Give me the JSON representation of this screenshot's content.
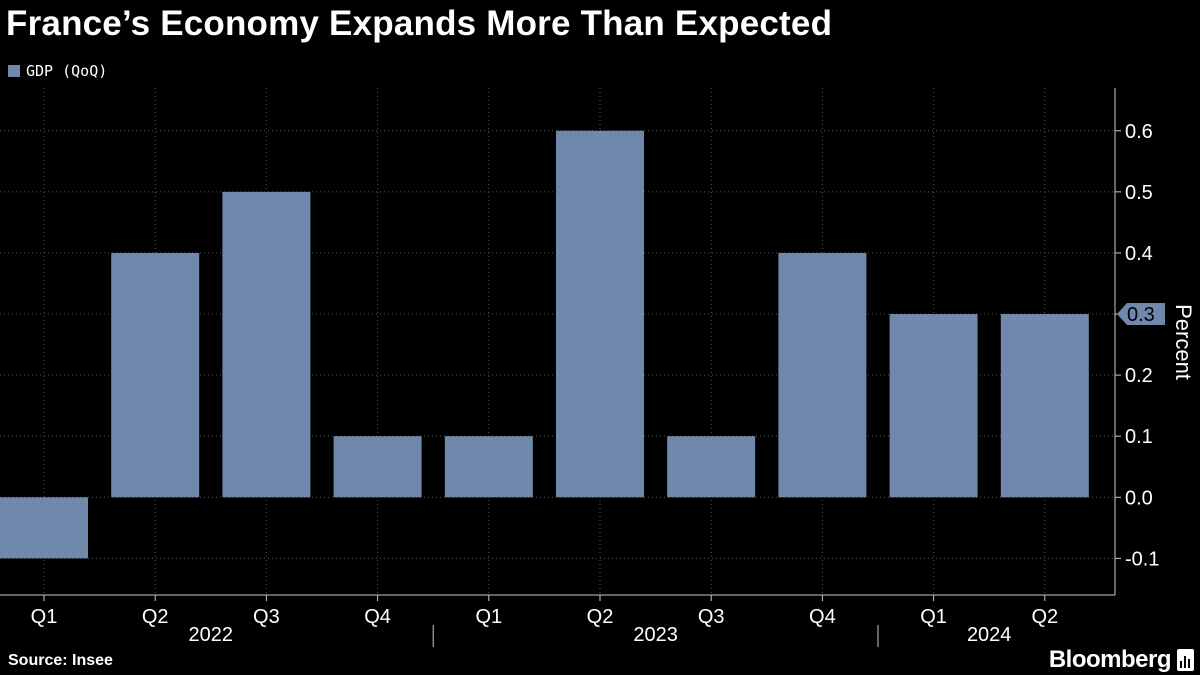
{
  "title": "France’s Economy Expands More Than Expected",
  "legend": {
    "label": "GDP (QoQ)",
    "color": "#7088ab"
  },
  "source": "Source: Insee",
  "brand": "Bloomberg",
  "chart_data": {
    "type": "bar",
    "title": "France’s Economy Expands More Than Expected",
    "series": [
      {
        "name": "GDP (QoQ)",
        "values": [
          -0.1,
          0.4,
          0.5,
          0.1,
          0.1,
          0.6,
          0.1,
          0.4,
          0.3,
          0.3
        ]
      }
    ],
    "categories": [
      "Q1",
      "Q2",
      "Q3",
      "Q4",
      "Q1",
      "Q2",
      "Q3",
      "Q4",
      "Q1",
      "Q2"
    ],
    "years": [
      {
        "label": "2022",
        "start": 0,
        "end": 3
      },
      {
        "label": "2023",
        "start": 4,
        "end": 7
      },
      {
        "label": "2024",
        "start": 8,
        "end": 9
      }
    ],
    "ylabel": "Percent",
    "xlabel": "",
    "ylim": [
      -0.16,
      0.67
    ],
    "yticks": [
      -0.1,
      0.0,
      0.1,
      0.2,
      0.3,
      0.4,
      0.5,
      0.6
    ],
    "ytick_labels": [
      "-0.1",
      "0.0",
      "0.1",
      "0.2",
      "0.3",
      "0.4",
      "0.5",
      "0.6"
    ],
    "last_value_label": "0.3",
    "grid": true,
    "axis_position": "right",
    "colors": {
      "bar": "#7088ab",
      "grid": "#555555",
      "axis": "#cccccc"
    }
  }
}
